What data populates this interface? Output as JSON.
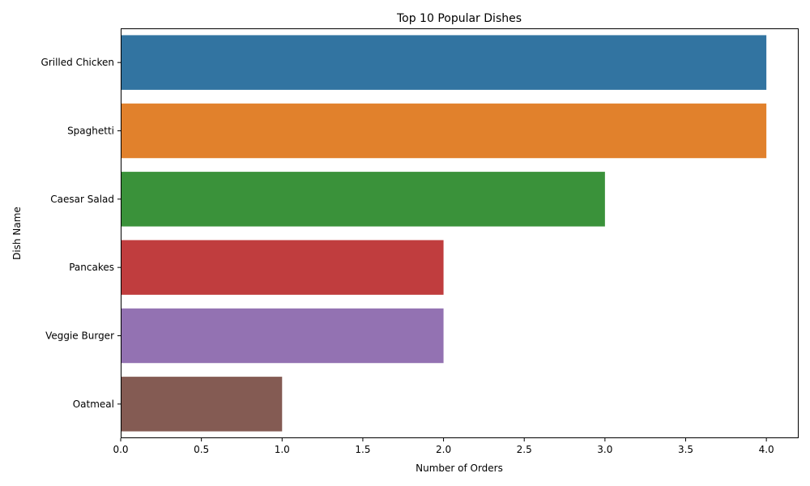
{
  "chart_data": {
    "type": "bar",
    "orientation": "horizontal",
    "title": "Top 10 Popular Dishes",
    "xlabel": "Number of Orders",
    "ylabel": "Dish Name",
    "categories": [
      "Grilled Chicken",
      "Spaghetti",
      "Caesar Salad",
      "Pancakes",
      "Veggie Burger",
      "Oatmeal"
    ],
    "values": [
      4,
      4,
      3,
      2,
      2,
      1
    ],
    "colors": [
      "#3274a1",
      "#e1812c",
      "#3a923a",
      "#c03d3e",
      "#9372b2",
      "#845b53"
    ],
    "xlim": [
      0,
      4.2
    ],
    "xticks": [
      "0.0",
      "0.5",
      "1.0",
      "1.5",
      "2.0",
      "2.5",
      "3.0",
      "3.5",
      "4.0"
    ],
    "grid": false,
    "legend": "none"
  }
}
